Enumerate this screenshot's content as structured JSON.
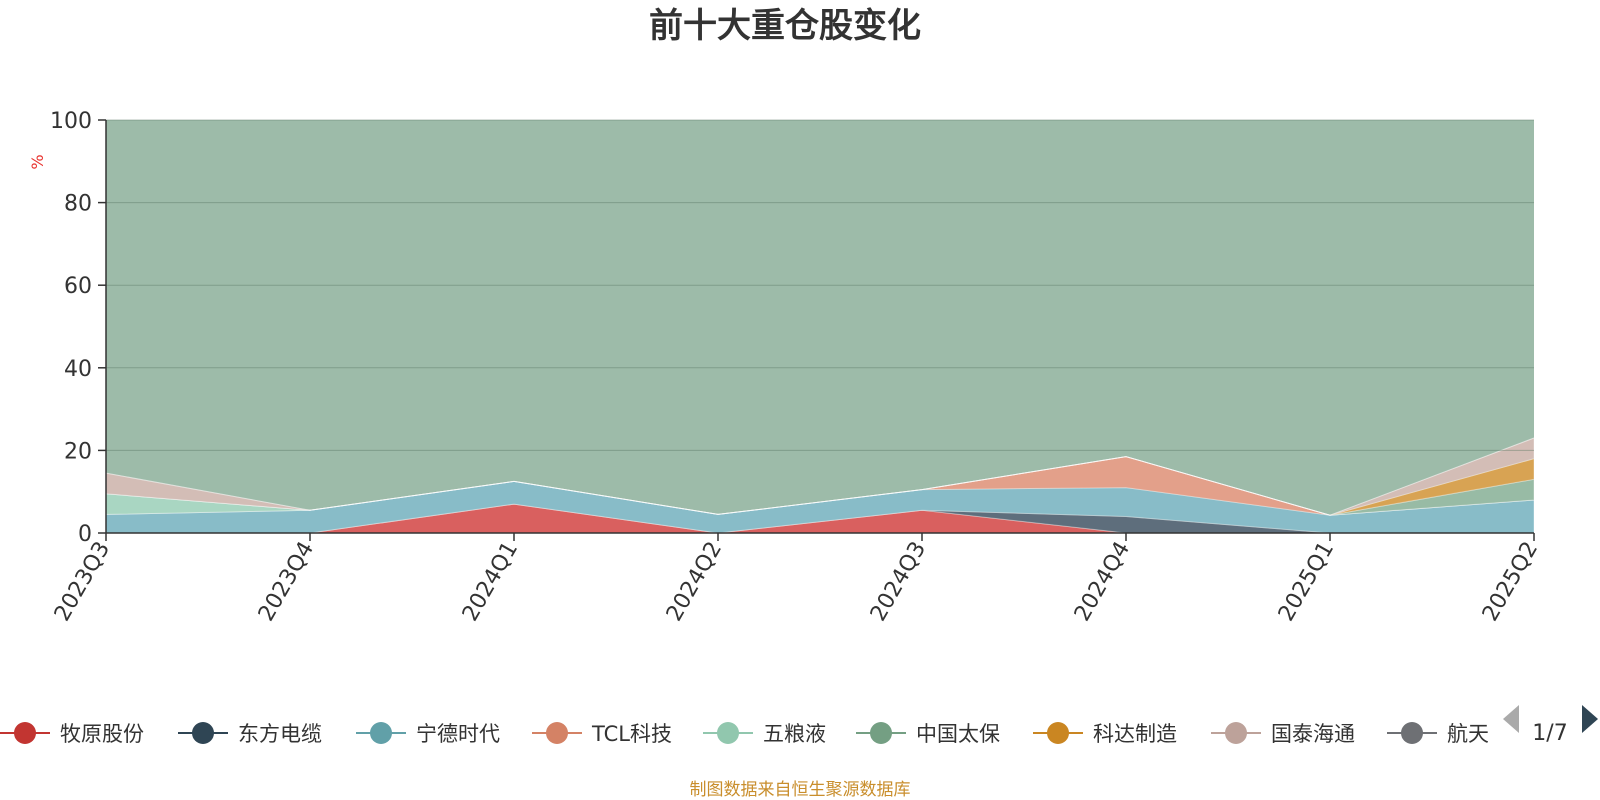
{
  "chart_data": {
    "type": "area",
    "stacked": "percent",
    "title": "前十大重仓股变化",
    "y_unit": "%",
    "ylim": [
      0,
      100
    ],
    "y_ticks": [
      0,
      20,
      40,
      60,
      80,
      100
    ],
    "categories": [
      "2023Q3",
      "2023Q4",
      "2024Q1",
      "2024Q2",
      "2024Q3",
      "2024Q4",
      "2025Q1",
      "2025Q2"
    ],
    "series": [
      {
        "name": "牧原股份",
        "color": "#d9605f",
        "values": [
          0,
          0,
          7,
          0,
          5.5,
          0,
          0,
          0
        ]
      },
      {
        "name": "东方电缆",
        "color": "#5e6e7c",
        "values": [
          0,
          0,
          0,
          0,
          0,
          4,
          0,
          0
        ]
      },
      {
        "name": "宁德时代",
        "color": "#88bcc8",
        "values": [
          4.5,
          5.5,
          5.5,
          4.5,
          5,
          7,
          4.3,
          8
        ]
      },
      {
        "name": "TCL科技",
        "color": "#e3a08a",
        "values": [
          0,
          0,
          0,
          0,
          0,
          7.5,
          0,
          0
        ]
      },
      {
        "name": "五粮液",
        "color": "#a9d6c2",
        "values": [
          5,
          0,
          0,
          0,
          0,
          0,
          0,
          0
        ]
      },
      {
        "name": "中国太保",
        "color": "#98bba5",
        "values": [
          0,
          0,
          0,
          0,
          0,
          0,
          0,
          5
        ]
      },
      {
        "name": "科达制造",
        "color": "#d8a353",
        "values": [
          0,
          0,
          0,
          0,
          0,
          0,
          0,
          5
        ]
      },
      {
        "name": "国泰海通",
        "color": "#d3bdb6",
        "values": [
          5,
          0,
          0,
          0,
          0,
          0,
          0,
          5
        ]
      },
      {
        "name": "航天电器",
        "color": "#8e9399",
        "values": [
          0,
          0,
          0,
          0,
          0,
          0,
          0,
          0
        ]
      }
    ],
    "legend_visible": [
      "牧原股份",
      "东方电缆",
      "宁德时代",
      "TCL科技",
      "五粮液",
      "中国太保",
      "科达制造",
      "国泰海通",
      "航天电器"
    ],
    "legend_page": "1/7",
    "legend_placement": "bottom",
    "source_note": "制图数据来自恒生聚源数据库"
  }
}
